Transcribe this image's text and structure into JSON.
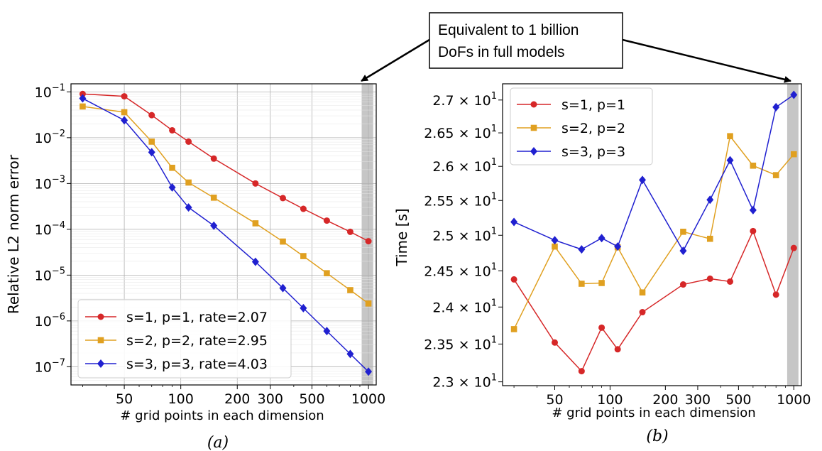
{
  "annotation": {
    "lines": [
      "Equivalent to 1 billion",
      "DoFs in full models"
    ]
  },
  "chart_data": [
    {
      "type": "line",
      "id": "a",
      "caption": "(a)",
      "title": "",
      "xlabel": "# grid points in each dimension",
      "ylabel": "Relative L2 norm error",
      "xscale": "log",
      "yscale": "log",
      "xlim": [
        26,
        1100
      ],
      "ylim": [
        4e-08,
        0.15
      ],
      "grid": true,
      "highlight_x": [
        920,
        1060
      ],
      "x_ticks": [
        {
          "v": 50,
          "label": "50"
        },
        {
          "v": 100,
          "label": "100"
        },
        {
          "v": 200,
          "label": "200"
        },
        {
          "v": 300,
          "label": "300"
        },
        {
          "v": 500,
          "label": "500"
        },
        {
          "v": 1000,
          "label": "1000"
        }
      ],
      "y_ticks": [
        {
          "v": 1e-07,
          "base": "10",
          "exp": "−7"
        },
        {
          "v": 1e-06,
          "base": "10",
          "exp": "−6"
        },
        {
          "v": 1e-05,
          "base": "10",
          "exp": "−5"
        },
        {
          "v": 0.0001,
          "base": "10",
          "exp": "−4"
        },
        {
          "v": 0.001,
          "base": "10",
          "exp": "−3"
        },
        {
          "v": 0.01,
          "base": "10",
          "exp": "−2"
        },
        {
          "v": 0.1,
          "base": "10",
          "exp": "−1"
        }
      ],
      "legend_position": "lower-left",
      "x": [
        30,
        50,
        70,
        90,
        110,
        150,
        250,
        350,
        450,
        600,
        800,
        1000
      ],
      "series": [
        {
          "name": "s=1, p=1, rate=2.07",
          "color": "#d62728",
          "marker": "circle",
          "values": [
            0.09,
            0.08,
            0.031,
            0.0145,
            0.0082,
            0.0035,
            0.001,
            0.00048,
            0.00028,
            0.000155,
            8.8e-05,
            5.5e-05
          ]
        },
        {
          "name": "s=2, p=2, rate=2.95",
          "color": "#e0a020",
          "marker": "square",
          "values": [
            0.048,
            0.036,
            0.0082,
            0.0022,
            0.00105,
            0.00049,
            0.000135,
            5.4e-05,
            2.6e-05,
            1.1e-05,
            4.7e-06,
            2.4e-06
          ]
        },
        {
          "name": "s=3, p=3, rate=4.03",
          "color": "#2020d0",
          "marker": "diamond",
          "values": [
            0.072,
            0.024,
            0.0048,
            0.00082,
            0.0003,
            0.00012,
            1.95e-05,
            5.2e-06,
            1.9e-06,
            6e-07,
            1.9e-07,
            7.8e-08
          ]
        }
      ]
    },
    {
      "type": "line",
      "id": "b",
      "caption": "(b)",
      "title": "",
      "xlabel": "# grid points in each dimension",
      "ylabel": "Time [s]",
      "xscale": "log",
      "yscale": "log",
      "xlim": [
        26,
        1100
      ],
      "ylim": [
        22.95,
        27.25
      ],
      "grid": false,
      "highlight_x": [
        920,
        1060
      ],
      "x_ticks": [
        {
          "v": 50,
          "label": "50"
        },
        {
          "v": 100,
          "label": "100"
        },
        {
          "v": 200,
          "label": "200"
        },
        {
          "v": 300,
          "label": "300"
        },
        {
          "v": 500,
          "label": "500"
        },
        {
          "v": 1000,
          "label": "1000"
        }
      ],
      "y_ticks": [
        {
          "v": 23.0,
          "mant": "2.3",
          "times": "×",
          "base": "10",
          "exp": "1"
        },
        {
          "v": 23.5,
          "mant": "2.35",
          "times": "×",
          "base": "10",
          "exp": "1"
        },
        {
          "v": 24.0,
          "mant": "2.4",
          "times": "×",
          "base": "10",
          "exp": "1"
        },
        {
          "v": 24.5,
          "mant": "2.45",
          "times": "×",
          "base": "10",
          "exp": "1"
        },
        {
          "v": 25.0,
          "mant": "2.5",
          "times": "×",
          "base": "10",
          "exp": "1"
        },
        {
          "v": 25.5,
          "mant": "2.55",
          "times": "×",
          "base": "10",
          "exp": "1"
        },
        {
          "v": 26.0,
          "mant": "2.6",
          "times": "×",
          "base": "10",
          "exp": "1"
        },
        {
          "v": 26.5,
          "mant": "2.65",
          "times": "×",
          "base": "10",
          "exp": "1"
        },
        {
          "v": 27.0,
          "mant": "2.7",
          "times": "×",
          "base": "10",
          "exp": "1"
        }
      ],
      "legend_position": "upper-left",
      "x": [
        30,
        50,
        70,
        90,
        110,
        150,
        250,
        350,
        450,
        600,
        800,
        1000
      ],
      "series": [
        {
          "name": "s=1, p=1",
          "color": "#d62728",
          "marker": "circle",
          "values": [
            24.38,
            23.52,
            23.14,
            23.72,
            23.43,
            23.93,
            24.31,
            24.39,
            24.35,
            25.06,
            24.17,
            24.82
          ]
        },
        {
          "name": "s=2, p=2",
          "color": "#e0a020",
          "marker": "square",
          "values": [
            23.7,
            24.84,
            24.32,
            24.33,
            24.83,
            24.2,
            25.05,
            24.95,
            26.45,
            26.01,
            25.87,
            26.18
          ]
        },
        {
          "name": "s=3, p=3",
          "color": "#2020d0",
          "marker": "diamond",
          "values": [
            25.19,
            24.93,
            24.8,
            24.96,
            24.84,
            25.8,
            24.78,
            25.51,
            26.09,
            25.36,
            26.89,
            27.08
          ]
        }
      ]
    }
  ]
}
